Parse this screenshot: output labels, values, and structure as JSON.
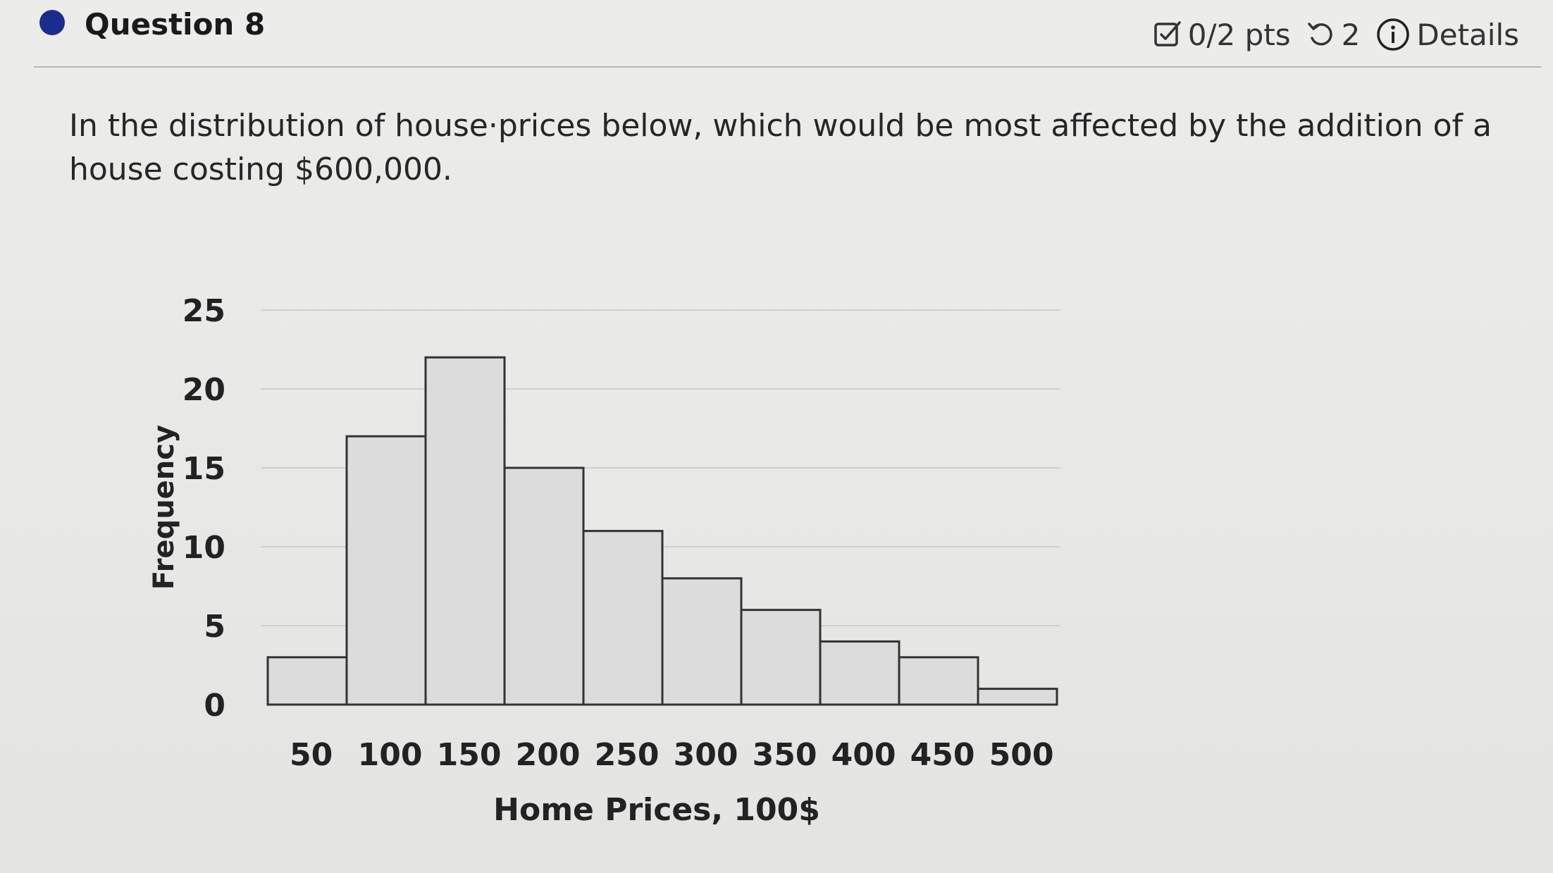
{
  "question": {
    "title": "Question 8",
    "points": "0/2 pts",
    "attempts": "2",
    "details_label": "Details",
    "icons": {
      "points": "checkbox-edit-icon",
      "attempts": "retry-icon",
      "details": "info-icon"
    },
    "prompt": "In the distribution of house·prices below, which would be most affected by the addition of a house costing $600,000."
  },
  "chart_data": {
    "type": "bar",
    "categories": [
      "50",
      "100",
      "150",
      "200",
      "250",
      "300",
      "350",
      "400",
      "450",
      "500"
    ],
    "values": [
      3,
      17,
      22,
      15,
      11,
      8,
      6,
      4,
      3,
      1
    ],
    "xlabel": "Home Prices, 100$",
    "ylabel": "Frequency",
    "ylim": [
      0,
      25
    ],
    "yticks": [
      0,
      5,
      10,
      15,
      20,
      25
    ],
    "grid": true,
    "bar_color": "#dcdcdc",
    "bar_edge_color": "#333333"
  }
}
